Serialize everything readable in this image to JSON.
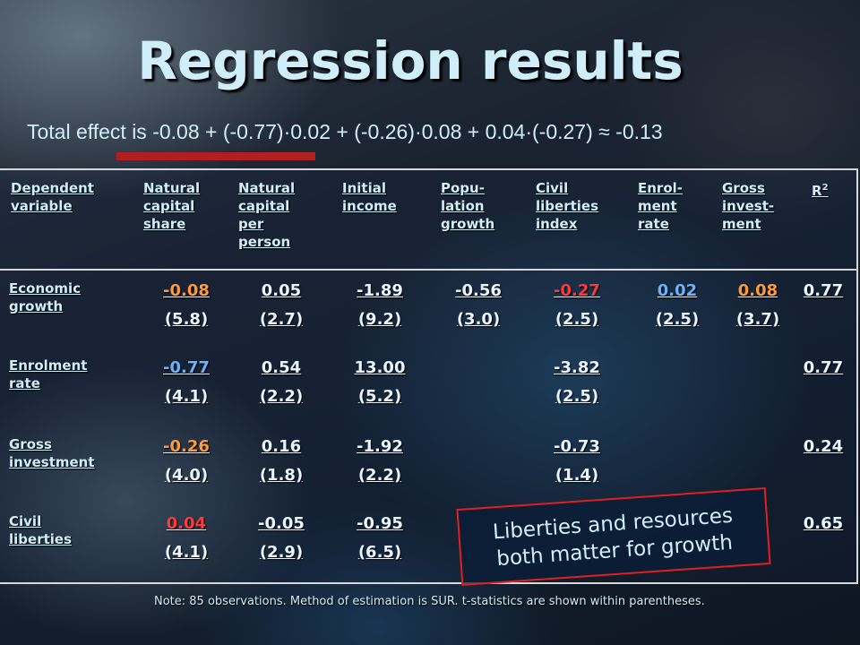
{
  "title": "Regression results",
  "total_effect": "Total effect is -0.08 + (-0.77)·0.02 + (-0.26)·0.08 + 0.04·(-0.27) ≈ -0.13",
  "headers": [
    [
      "Dependent",
      "variable"
    ],
    [
      "Natural",
      "capital",
      "share"
    ],
    [
      "Natural",
      "capital",
      "per",
      "person"
    ],
    [
      "Initial",
      "income"
    ],
    [
      "Popu-",
      "lation",
      "growth"
    ],
    [
      "Civil",
      "liberties",
      "index"
    ],
    [
      "Enrol-",
      "ment",
      "rate"
    ],
    [
      "Gross",
      "invest-",
      "ment"
    ]
  ],
  "r2_header": {
    "base": "R",
    "sup": "2"
  },
  "rows": [
    {
      "label": [
        "Economic",
        "growth"
      ],
      "cells": [
        {
          "v": "-0.08",
          "t": "(5.8)",
          "color": "#ff9a3a"
        },
        {
          "v": "0.05",
          "t": "(2.7)"
        },
        {
          "v": "-1.89",
          "t": "(9.2)"
        },
        {
          "v": "-0.56",
          "t": "(3.0)"
        },
        {
          "v": "-0.27",
          "t": "(2.5)",
          "color": "#ff3a3a"
        },
        {
          "v": "0.02",
          "t": "(2.5)",
          "color": "#6ab4ff"
        },
        {
          "v": "0.08",
          "t": "(3.7)",
          "color": "#ff9a3a"
        }
      ],
      "r2": "0.77"
    },
    {
      "label": [
        "Enrolment",
        "rate"
      ],
      "cells": [
        {
          "v": "-0.77",
          "t": "(4.1)",
          "color": "#6ab4ff"
        },
        {
          "v": "0.54",
          "t": "(2.2)"
        },
        {
          "v": "13.00",
          "t": "(5.2)"
        },
        {
          "v": "",
          "t": ""
        },
        {
          "v": "-3.82",
          "t": "(2.5)"
        },
        {
          "v": "",
          "t": ""
        },
        {
          "v": "",
          "t": ""
        }
      ],
      "r2": "0.77"
    },
    {
      "label": [
        "Gross",
        "investment"
      ],
      "cells": [
        {
          "v": "-0.26",
          "t": "(4.0)",
          "color": "#ff9a3a"
        },
        {
          "v": "0.16",
          "t": "(1.8)"
        },
        {
          "v": "-1.92",
          "t": "(2.2)"
        },
        {
          "v": "",
          "t": ""
        },
        {
          "v": "-0.73",
          "t": "(1.4)"
        },
        {
          "v": "",
          "t": ""
        },
        {
          "v": "",
          "t": ""
        }
      ],
      "r2": "0.24"
    },
    {
      "label": [
        "Civil",
        "liberties"
      ],
      "cells": [
        {
          "v": "0.04",
          "t": "(4.1)",
          "color": "#ff3a3a"
        },
        {
          "v": "-0.05",
          "t": "(2.9)"
        },
        {
          "v": "-0.95",
          "t": "(6.5)"
        },
        {
          "v": "",
          "t": ""
        },
        {
          "v": "",
          "t": ""
        },
        {
          "v": "",
          "t": ""
        },
        {
          "v": "",
          "t": ""
        }
      ],
      "r2": "0.65"
    }
  ],
  "callout": [
    "Liberties and resources",
    "both matter for growth"
  ],
  "note": "Note: 85 observations. Method of estimation is SUR. t-statistics are shown within parentheses."
}
